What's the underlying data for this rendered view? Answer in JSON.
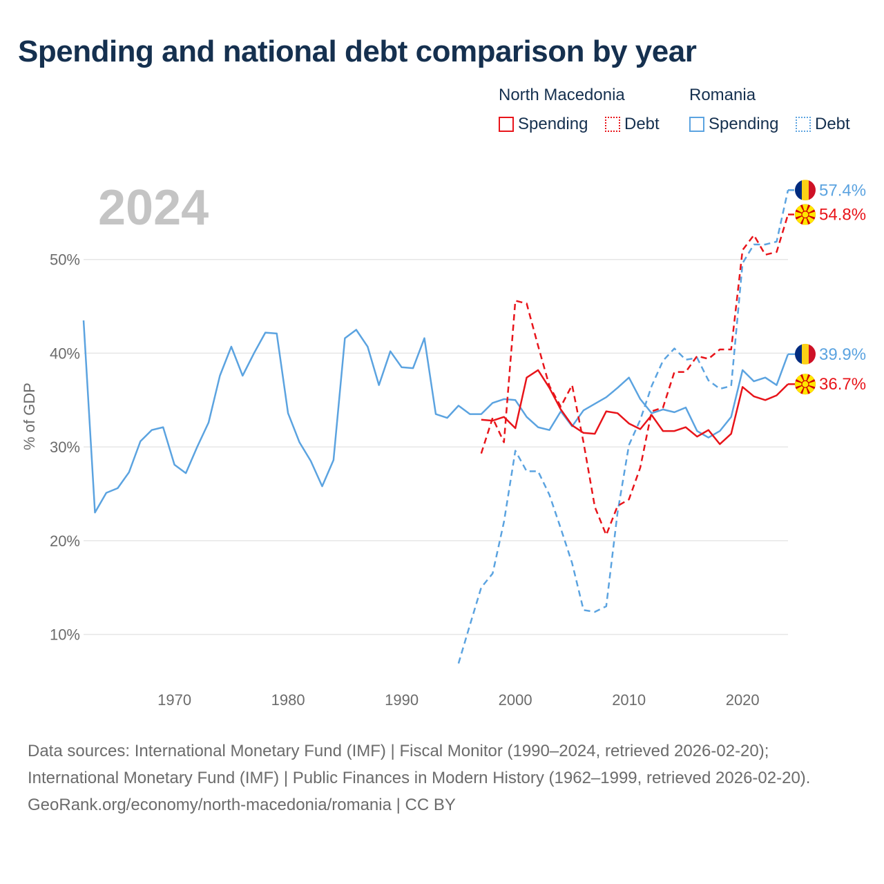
{
  "title": "Spending and national debt comparison by year",
  "legend": {
    "groups": [
      {
        "name": "North Macedonia",
        "items": [
          {
            "label": "Spending",
            "style": "solid",
            "color": "#e8141a"
          },
          {
            "label": "Debt",
            "style": "dotted",
            "color": "#e8141a"
          }
        ]
      },
      {
        "name": "Romania",
        "items": [
          {
            "label": "Spending",
            "style": "solid",
            "color": "#5ba3e0"
          },
          {
            "label": "Debt",
            "style": "dotted",
            "color": "#5ba3e0"
          }
        ]
      }
    ]
  },
  "colors": {
    "north_macedonia": "#e8141a",
    "romania": "#5ba3e0",
    "title": "#15304f",
    "year_watermark": "#c4c4c4",
    "axis_text": "#6b6b6b",
    "grid": "#e6e6e6"
  },
  "icons": {
    "romania_flag": "romania-flag-icon",
    "north_macedonia_flag": "north-macedonia-flag-icon"
  },
  "sources": {
    "line1": "Data sources: International Monetary Fund (IMF) | Fiscal Monitor (1990–2024, retrieved 2026-02-20); International Monetary Fund (IMF) | Public Finances in Modern History (1962–1999, retrieved 2026-02-20).",
    "line2": "GeoRank.org/economy/north-macedonia/romania | CC BY"
  },
  "chart_data": {
    "type": "line",
    "year_label": "2024",
    "ylabel": "% of GDP",
    "xlabel": "",
    "xlim": [
      1962,
      2024
    ],
    "ylim": [
      4,
      60
    ],
    "x_ticks": [
      1970,
      1980,
      1990,
      2000,
      2010,
      2020
    ],
    "y_ticks": [
      10,
      20,
      30,
      40,
      50
    ],
    "y_tick_labels": [
      "10%",
      "20%",
      "30%",
      "40%",
      "50%"
    ],
    "grid": true,
    "end_labels": [
      {
        "series": "Romania Debt",
        "text": "57.4%",
        "flag": "romania"
      },
      {
        "series": "North Macedonia Debt",
        "text": "54.8%",
        "flag": "north_macedonia"
      },
      {
        "series": "Romania Spending",
        "text": "39.9%",
        "flag": "romania"
      },
      {
        "series": "North Macedonia Spending",
        "text": "36.7%",
        "flag": "north_macedonia"
      }
    ],
    "series": [
      {
        "name": "Romania Spending",
        "country": "romania",
        "style": "solid",
        "x": [
          1962,
          1963,
          1964,
          1965,
          1966,
          1967,
          1968,
          1969,
          1970,
          1971,
          1972,
          1973,
          1974,
          1975,
          1976,
          1977,
          1978,
          1979,
          1980,
          1981,
          1982,
          1983,
          1984,
          1985,
          1986,
          1987,
          1988,
          1989,
          1990,
          1991,
          1992,
          1993,
          1994,
          1995,
          1996,
          1997,
          1998,
          1999,
          2000,
          2001,
          2002,
          2003,
          2004,
          2005,
          2006,
          2007,
          2008,
          2009,
          2010,
          2011,
          2012,
          2013,
          2014,
          2015,
          2016,
          2017,
          2018,
          2019,
          2020,
          2021,
          2022,
          2023,
          2024
        ],
        "values": [
          43.5,
          23.0,
          25.1,
          25.6,
          27.3,
          30.6,
          31.8,
          32.1,
          28.1,
          27.2,
          30.0,
          32.6,
          37.6,
          40.7,
          37.6,
          40.0,
          42.2,
          42.1,
          33.6,
          30.5,
          28.5,
          25.8,
          28.6,
          41.6,
          42.5,
          40.7,
          36.6,
          40.2,
          38.5,
          38.4,
          41.6,
          33.5,
          33.1,
          34.4,
          33.5,
          33.5,
          34.7,
          35.1,
          35.0,
          33.2,
          32.1,
          31.8,
          33.8,
          32.2,
          33.9,
          34.6,
          35.3,
          36.3,
          37.4,
          35.1,
          33.6,
          34.0,
          33.7,
          34.2,
          31.7,
          31.0,
          31.7,
          33.2,
          38.2,
          37.0,
          37.4,
          36.6,
          39.9
        ]
      },
      {
        "name": "Romania Debt",
        "country": "romania",
        "style": "dashed",
        "x": [
          1995,
          1996,
          1997,
          1998,
          1999,
          2000,
          2001,
          2002,
          2003,
          2004,
          2005,
          2006,
          2007,
          2008,
          2009,
          2010,
          2011,
          2012,
          2013,
          2014,
          2015,
          2016,
          2017,
          2018,
          2019,
          2020,
          2021,
          2022,
          2023,
          2024
        ],
        "values": [
          6.9,
          11.0,
          15.0,
          16.5,
          22.0,
          29.6,
          27.4,
          27.4,
          24.9,
          21.3,
          17.6,
          12.6,
          12.4,
          13.0,
          23.0,
          30.2,
          32.9,
          36.5,
          39.2,
          40.5,
          39.3,
          39.5,
          37.1,
          36.2,
          36.5,
          49.6,
          51.6,
          51.6,
          51.9,
          57.4
        ]
      },
      {
        "name": "North Macedonia Spending",
        "country": "north_macedonia",
        "style": "solid",
        "x": [
          1997,
          1998,
          1999,
          2000,
          2001,
          2002,
          2003,
          2004,
          2005,
          2006,
          2007,
          2008,
          2009,
          2010,
          2011,
          2012,
          2013,
          2014,
          2015,
          2016,
          2017,
          2018,
          2019,
          2020,
          2021,
          2022,
          2023,
          2024
        ],
        "values": [
          32.9,
          32.8,
          33.2,
          32.0,
          37.4,
          38.2,
          36.3,
          34.0,
          32.3,
          31.5,
          31.4,
          33.8,
          33.6,
          32.5,
          31.9,
          33.4,
          31.7,
          31.7,
          32.1,
          31.1,
          31.8,
          30.3,
          31.4,
          36.4,
          35.4,
          35.0,
          35.5,
          36.7
        ]
      },
      {
        "name": "North Macedonia Debt",
        "country": "north_macedonia",
        "style": "dashed",
        "x": [
          1997,
          1998,
          1999,
          2000,
          2001,
          2002,
          2003,
          2004,
          2005,
          2006,
          2007,
          2008,
          2009,
          2010,
          2011,
          2012,
          2013,
          2014,
          2015,
          2016,
          2017,
          2018,
          2019,
          2020,
          2021,
          2022,
          2023,
          2024
        ],
        "values": [
          29.3,
          33.1,
          30.5,
          45.6,
          45.3,
          40.8,
          36.5,
          34.3,
          36.6,
          30.5,
          23.6,
          20.6,
          23.7,
          24.4,
          27.8,
          33.8,
          34.2,
          38.0,
          38.0,
          39.7,
          39.4,
          40.4,
          40.4,
          51.0,
          52.6,
          50.5,
          50.8,
          54.8
        ]
      }
    ]
  }
}
